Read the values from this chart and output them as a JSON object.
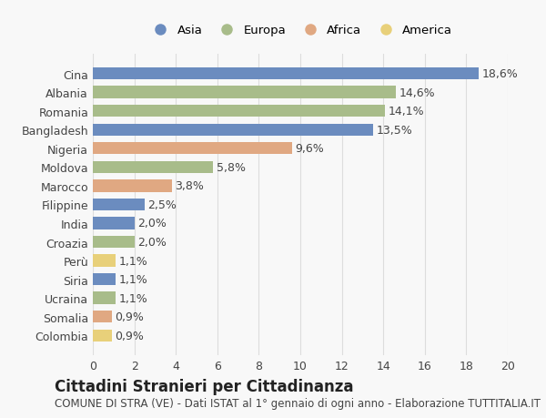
{
  "categories": [
    "Cina",
    "Albania",
    "Romania",
    "Bangladesh",
    "Nigeria",
    "Moldova",
    "Marocco",
    "Filippine",
    "India",
    "Croazia",
    "Perù",
    "Siria",
    "Ucraina",
    "Somalia",
    "Colombia"
  ],
  "values": [
    18.6,
    14.6,
    14.1,
    13.5,
    9.6,
    5.8,
    3.8,
    2.5,
    2.0,
    2.0,
    1.1,
    1.1,
    1.1,
    0.9,
    0.9
  ],
  "labels": [
    "18,6%",
    "14,6%",
    "14,1%",
    "13,5%",
    "9,6%",
    "5,8%",
    "3,8%",
    "2,5%",
    "2,0%",
    "2,0%",
    "1,1%",
    "1,1%",
    "1,1%",
    "0,9%",
    "0,9%"
  ],
  "continents": [
    "Asia",
    "Europa",
    "Europa",
    "Asia",
    "Africa",
    "Europa",
    "Africa",
    "Asia",
    "Asia",
    "Europa",
    "America",
    "Asia",
    "Europa",
    "Africa",
    "America"
  ],
  "continent_colors": {
    "Asia": "#6b8cbf",
    "Europa": "#a8bc8a",
    "Africa": "#e0a882",
    "America": "#e8d07a"
  },
  "legend_order": [
    "Asia",
    "Europa",
    "Africa",
    "America"
  ],
  "title": "Cittadini Stranieri per Cittadinanza",
  "subtitle": "COMUNE DI STRA (VE) - Dati ISTAT al 1° gennaio di ogni anno - Elaborazione TUTTITALIA.IT",
  "xlim": [
    0,
    20
  ],
  "xticks": [
    0,
    2,
    4,
    6,
    8,
    10,
    12,
    14,
    16,
    18,
    20
  ],
  "background_color": "#f8f8f8",
  "grid_color": "#dddddd",
  "bar_height": 0.65,
  "label_fontsize": 9,
  "tick_fontsize": 9,
  "title_fontsize": 12,
  "subtitle_fontsize": 8.5
}
